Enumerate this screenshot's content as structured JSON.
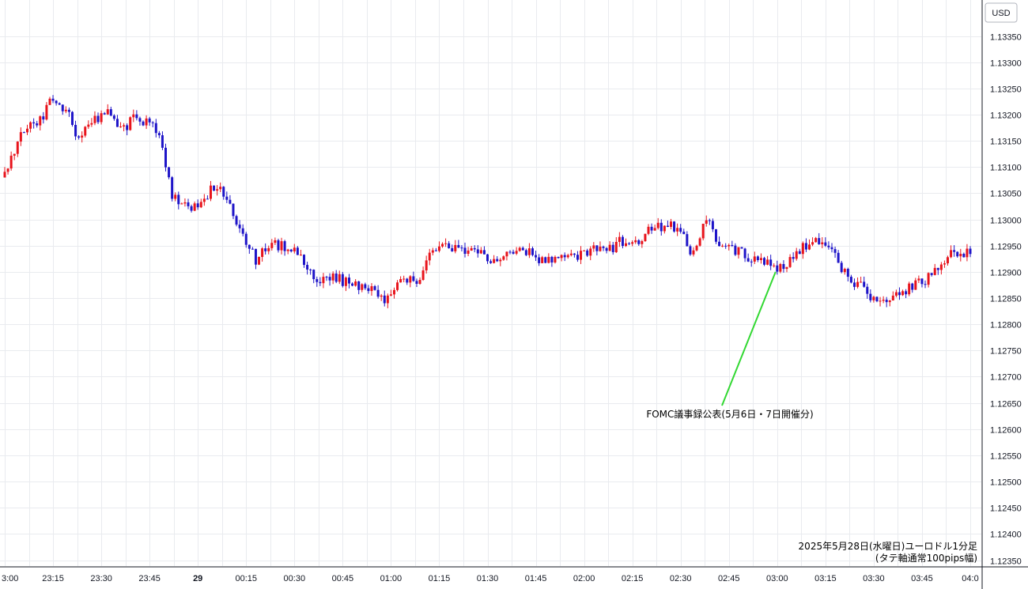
{
  "chart_data": {
    "type": "candlestick",
    "currency_label": "USD",
    "caption_line1": "2025年5月28日(水曜日)ユーロドル1分足",
    "caption_line2": "(タテ軸通常100pips幅)",
    "annotation": {
      "text": "FOMC議事録公表(5月6日・7日開催分)",
      "time": "03:00",
      "price": 1.129
    },
    "ylim": [
      1.1235,
      1.1338
    ],
    "y_ticks": [
      "1.13350",
      "1.13300",
      "1.13250",
      "1.13200",
      "1.13150",
      "1.13100",
      "1.13050",
      "1.13000",
      "1.12950",
      "1.12900",
      "1.12850",
      "1.12800",
      "1.12750",
      "1.12700",
      "1.12650",
      "1.12600",
      "1.12550",
      "1.12500",
      "1.12450",
      "1.12400",
      "1.12350"
    ],
    "x_range": [
      "23:00",
      "04:00"
    ],
    "x_ticks": [
      {
        "label": "3:00",
        "time": "23:00"
      },
      {
        "label": "23:15",
        "time": "23:15"
      },
      {
        "label": "23:30",
        "time": "23:30"
      },
      {
        "label": "23:45",
        "time": "23:45"
      },
      {
        "label": "29",
        "time": "00:00"
      },
      {
        "label": "00:15",
        "time": "00:15"
      },
      {
        "label": "00:30",
        "time": "00:30"
      },
      {
        "label": "00:45",
        "time": "00:45"
      },
      {
        "label": "01:00",
        "time": "01:00"
      },
      {
        "label": "01:15",
        "time": "01:15"
      },
      {
        "label": "01:30",
        "time": "01:30"
      },
      {
        "label": "01:45",
        "time": "01:45"
      },
      {
        "label": "02:00",
        "time": "02:00"
      },
      {
        "label": "02:15",
        "time": "02:15"
      },
      {
        "label": "02:30",
        "time": "02:30"
      },
      {
        "label": "02:45",
        "time": "02:45"
      },
      {
        "label": "03:00",
        "time": "03:00"
      },
      {
        "label": "03:15",
        "time": "03:15"
      },
      {
        "label": "03:30",
        "time": "03:30"
      },
      {
        "label": "03:45",
        "time": "03:45"
      },
      {
        "label": "04:0",
        "time": "04:00"
      }
    ],
    "up_color": "#e8141c",
    "down_color": "#1e14c8",
    "annotation_color": "#32d832",
    "close_path": [
      [
        "23:00",
        1.1308
      ],
      [
        "23:05",
        1.1317
      ],
      [
        "23:10",
        1.1318
      ],
      [
        "23:13",
        1.1321
      ],
      [
        "23:15",
        1.1323
      ],
      [
        "23:20",
        1.132
      ],
      [
        "23:23",
        1.1315
      ],
      [
        "23:28",
        1.1319
      ],
      [
        "23:32",
        1.1321
      ],
      [
        "23:36",
        1.1317
      ],
      [
        "23:40",
        1.1319
      ],
      [
        "23:43",
        1.1318
      ],
      [
        "23:46",
        1.1319
      ],
      [
        "23:49",
        1.1313
      ],
      [
        "23:52",
        1.1304
      ],
      [
        "23:55",
        1.1303
      ],
      [
        "00:00",
        1.1302
      ],
      [
        "00:04",
        1.1306
      ],
      [
        "00:08",
        1.1305
      ],
      [
        "00:12",
        1.13
      ],
      [
        "00:15",
        1.1296
      ],
      [
        "00:18",
        1.1292
      ],
      [
        "00:22",
        1.1295
      ],
      [
        "00:27",
        1.1295
      ],
      [
        "00:30",
        1.1294
      ],
      [
        "00:35",
        1.129
      ],
      [
        "00:37",
        1.1288
      ],
      [
        "00:42",
        1.1289
      ],
      [
        "00:46",
        1.1288
      ],
      [
        "00:50",
        1.1287
      ],
      [
        "00:55",
        1.1286
      ],
      [
        "00:58",
        1.1285
      ],
      [
        "01:03",
        1.1289
      ],
      [
        "01:08",
        1.1288
      ],
      [
        "01:12",
        1.1293
      ],
      [
        "01:16",
        1.1295
      ],
      [
        "01:22",
        1.1294
      ],
      [
        "01:27",
        1.1294
      ],
      [
        "01:32",
        1.1292
      ],
      [
        "01:37",
        1.1293
      ],
      [
        "01:42",
        1.1294
      ],
      [
        "01:47",
        1.1292
      ],
      [
        "01:52",
        1.1292
      ],
      [
        "01:57",
        1.1293
      ],
      [
        "02:02",
        1.1294
      ],
      [
        "02:07",
        1.1294
      ],
      [
        "02:12",
        1.1296
      ],
      [
        "02:17",
        1.1296
      ],
      [
        "02:21",
        1.1298
      ],
      [
        "02:25",
        1.1299
      ],
      [
        "02:30",
        1.1298
      ],
      [
        "02:33",
        1.1293
      ],
      [
        "02:36",
        1.1297
      ],
      [
        "02:38",
        1.13
      ],
      [
        "02:41",
        1.1296
      ],
      [
        "02:45",
        1.1295
      ],
      [
        "02:50",
        1.1293
      ],
      [
        "02:55",
        1.1293
      ],
      [
        "03:00",
        1.129
      ],
      [
        "03:05",
        1.1293
      ],
      [
        "03:09",
        1.1295
      ],
      [
        "03:13",
        1.1296
      ],
      [
        "03:16",
        1.1295
      ],
      [
        "03:18",
        1.1293
      ],
      [
        "03:21",
        1.129
      ],
      [
        "03:24",
        1.1288
      ],
      [
        "03:27",
        1.1287
      ],
      [
        "03:30",
        1.1285
      ],
      [
        "03:33",
        1.1285
      ],
      [
        "03:37",
        1.1286
      ],
      [
        "03:41",
        1.1287
      ],
      [
        "03:45",
        1.1288
      ],
      [
        "03:49",
        1.129
      ],
      [
        "03:53",
        1.1293
      ],
      [
        "03:57",
        1.1294
      ],
      [
        "04:00",
        1.1293
      ]
    ]
  }
}
